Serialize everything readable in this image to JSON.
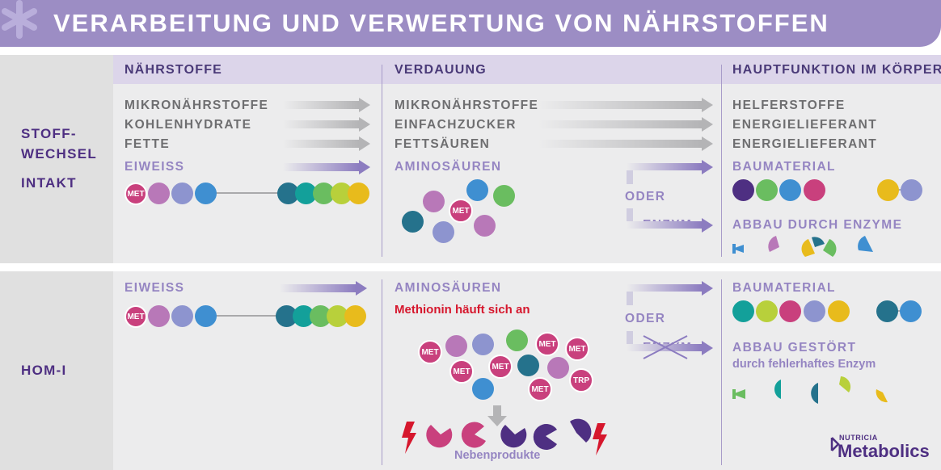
{
  "title": "Verarbeitung und Verwertung von Nährstoffen",
  "columns": {
    "naehrstoffe": "Nährstoffe",
    "verdauung": "Verdauung",
    "hauptfunktion": "Hauptfunktion im Körper"
  },
  "row1": {
    "label_line1": "Stoff-",
    "label_line2": "wechsel",
    "label_line3": "intakt",
    "nutrients": [
      "Mikronährstoffe",
      "Kohlenhydrate",
      "Fette",
      "Eiweiss"
    ],
    "digestion": [
      "Mikronährstoffe",
      "Einfachzucker",
      "Fettsäuren",
      "Aminosäuren"
    ],
    "functions": [
      "Helferstoffe",
      "Energielieferant",
      "Energielieferant",
      "Baumaterial"
    ],
    "oder": "oder",
    "enzym": "Enzym",
    "abbau": "Abbau durch Enzyme",
    "met": "MET"
  },
  "row2": {
    "label": "HoM-I",
    "nutrient": "Eiweiss",
    "digestion": "Aminosäuren",
    "methionin_note": "Methionin häuft sich an",
    "oder": "oder",
    "enzym": "Enzym",
    "baumaterial": "Baumaterial",
    "abbau": "Abbau gestört",
    "abbau_sub": "durch fehlerhaftes Enzym",
    "nebenprodukte": "Nebenprodukte",
    "met": "MET",
    "trp": "TRP"
  },
  "brand": {
    "small": "NUTRICIA",
    "big": "Metabolics"
  },
  "colors": {
    "header": "#9c8dc4",
    "dark_purple": "#4e2f82",
    "magenta": "#c9407d",
    "red": "#d6172d"
  }
}
